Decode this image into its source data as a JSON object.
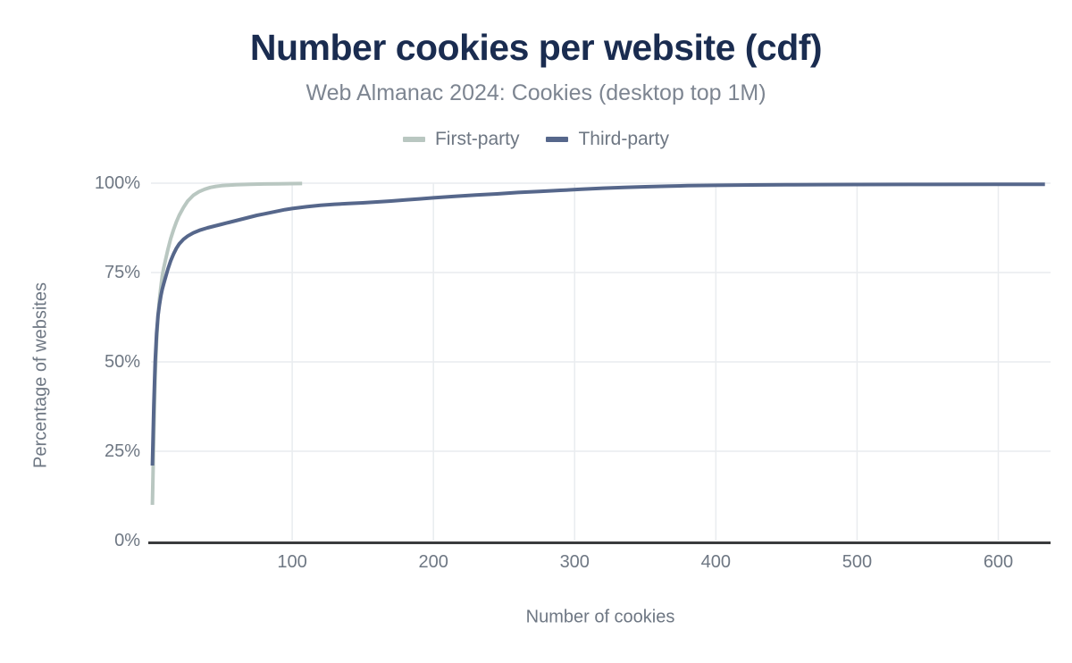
{
  "chart_data": {
    "type": "line",
    "title": "Number cookies per website (cdf)",
    "subtitle": "Web Almanac 2024: Cookies (desktop top 1M)",
    "xlabel": "Number of cookies",
    "ylabel": "Percentage of websites",
    "xlim": [
      0,
      637
    ],
    "ylim": [
      0,
      100
    ],
    "x_ticks": [
      100,
      200,
      300,
      400,
      500,
      600
    ],
    "x_tick_labels": [
      "100",
      "200",
      "300",
      "400",
      "500",
      "600"
    ],
    "y_ticks": [
      0,
      25,
      50,
      75,
      100
    ],
    "y_tick_labels": [
      "0%",
      "25%",
      "50%",
      "75%",
      "100%"
    ],
    "grid": true,
    "legend_position": "top",
    "series": [
      {
        "name": "First-party",
        "color": "#b9c7c1",
        "points": [
          [
            1,
            10
          ],
          [
            2,
            30
          ],
          [
            3,
            46
          ],
          [
            4,
            56
          ],
          [
            5,
            63
          ],
          [
            6,
            67.5
          ],
          [
            7,
            71
          ],
          [
            8,
            74
          ],
          [
            9,
            76.2
          ],
          [
            10,
            78
          ],
          [
            12,
            81.5
          ],
          [
            14,
            84.5
          ],
          [
            16,
            87
          ],
          [
            18,
            89.2
          ],
          [
            20,
            91
          ],
          [
            23,
            93.2
          ],
          [
            26,
            95
          ],
          [
            30,
            96.6
          ],
          [
            34,
            97.6
          ],
          [
            38,
            98.3
          ],
          [
            42,
            98.8
          ],
          [
            46,
            99.1
          ],
          [
            50,
            99.3
          ],
          [
            55,
            99.45
          ],
          [
            60,
            99.55
          ],
          [
            70,
            99.7
          ],
          [
            80,
            99.78
          ],
          [
            90,
            99.83
          ],
          [
            100,
            99.87
          ],
          [
            107,
            99.9
          ]
        ]
      },
      {
        "name": "Third-party",
        "color": "#56678b",
        "points": [
          [
            1,
            21
          ],
          [
            2,
            38
          ],
          [
            3,
            50
          ],
          [
            4,
            58
          ],
          [
            5,
            63
          ],
          [
            6,
            66
          ],
          [
            7,
            68.5
          ],
          [
            8,
            70.3
          ],
          [
            9,
            71.8
          ],
          [
            10,
            73.2
          ],
          [
            12,
            76
          ],
          [
            14,
            78.3
          ],
          [
            16,
            80.2
          ],
          [
            18,
            81.8
          ],
          [
            20,
            83
          ],
          [
            23,
            84.3
          ],
          [
            26,
            85.2
          ],
          [
            30,
            86.1
          ],
          [
            35,
            86.9
          ],
          [
            40,
            87.5
          ],
          [
            45,
            88
          ],
          [
            50,
            88.5
          ],
          [
            55,
            89
          ],
          [
            60,
            89.5
          ],
          [
            65,
            90
          ],
          [
            70,
            90.5
          ],
          [
            75,
            91
          ],
          [
            80,
            91.4
          ],
          [
            85,
            91.8
          ],
          [
            90,
            92.2
          ],
          [
            95,
            92.6
          ],
          [
            100,
            92.9
          ],
          [
            110,
            93.4
          ],
          [
            120,
            93.8
          ],
          [
            130,
            94.1
          ],
          [
            140,
            94.3
          ],
          [
            150,
            94.5
          ],
          [
            160,
            94.75
          ],
          [
            170,
            95
          ],
          [
            180,
            95.3
          ],
          [
            190,
            95.6
          ],
          [
            200,
            95.9
          ],
          [
            215,
            96.3
          ],
          [
            230,
            96.7
          ],
          [
            245,
            97
          ],
          [
            260,
            97.4
          ],
          [
            275,
            97.7
          ],
          [
            290,
            98
          ],
          [
            305,
            98.3
          ],
          [
            320,
            98.6
          ],
          [
            335,
            98.8
          ],
          [
            350,
            99
          ],
          [
            365,
            99.15
          ],
          [
            380,
            99.3
          ],
          [
            400,
            99.4
          ],
          [
            425,
            99.5
          ],
          [
            450,
            99.55
          ],
          [
            475,
            99.6
          ],
          [
            500,
            99.62
          ],
          [
            550,
            99.65
          ],
          [
            600,
            99.67
          ],
          [
            633,
            99.68
          ]
        ]
      }
    ]
  },
  "colors": {
    "title": "#1a2c50",
    "subtitle": "#7d8591",
    "tick_label": "#6e7783",
    "axis_line": "#3a3b3d",
    "gridline": "#e9ecef",
    "background": "#ffffff"
  }
}
